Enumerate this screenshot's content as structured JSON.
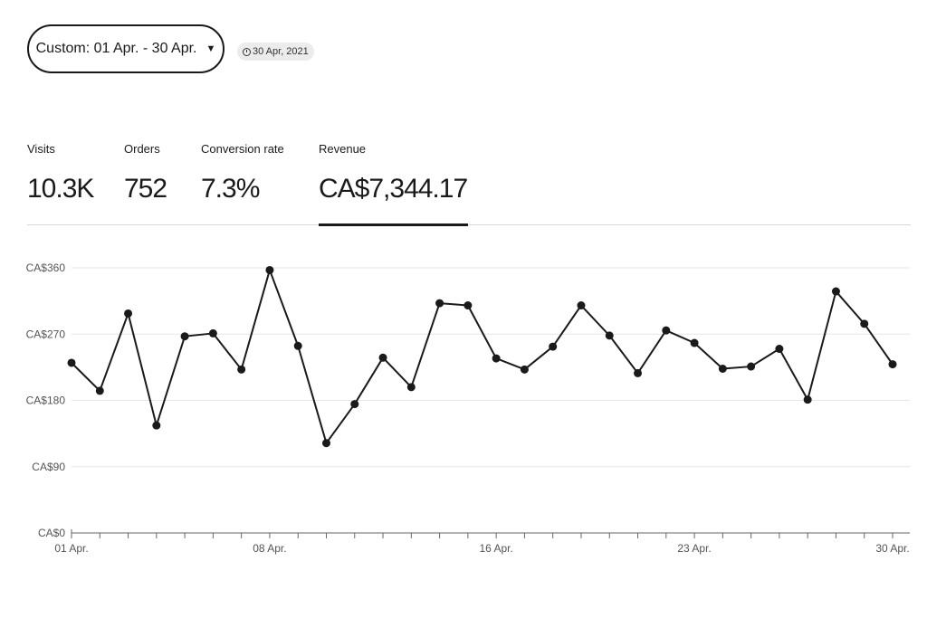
{
  "date_range": {
    "label": "Custom: 01 Apr. - 30 Apr.",
    "caret": "▼"
  },
  "updated_badge": {
    "icon": "clock-icon",
    "text": "30 Apr, 2021"
  },
  "metrics": [
    {
      "label": "Visits",
      "value": "10.3K"
    },
    {
      "label": "Orders",
      "value": "752"
    },
    {
      "label": "Conversion rate",
      "value": "7.3%"
    },
    {
      "label": "Revenue",
      "value": "CA$7,344.17",
      "active": true
    }
  ],
  "chart_data": {
    "type": "line",
    "series": [
      {
        "values": [
          231,
          193,
          298,
          146,
          267,
          271,
          222,
          357,
          254,
          122,
          175,
          238,
          198,
          312,
          309,
          237,
          222,
          253,
          309,
          268,
          217,
          275,
          258,
          223,
          226,
          250,
          181,
          328,
          284,
          229
        ]
      }
    ],
    "x": [
      1,
      2,
      3,
      4,
      5,
      6,
      7,
      8,
      9,
      10,
      11,
      12,
      13,
      14,
      15,
      16,
      17,
      18,
      19,
      20,
      21,
      22,
      23,
      24,
      25,
      26,
      27,
      28,
      29,
      30
    ],
    "x_tick_labels": [
      {
        "day": 1,
        "label": "01 Apr."
      },
      {
        "day": 8,
        "label": "08 Apr."
      },
      {
        "day": 16,
        "label": "16 Apr."
      },
      {
        "day": 23,
        "label": "23 Apr."
      },
      {
        "day": 30,
        "label": "30 Apr."
      }
    ],
    "y_ticks": [
      0,
      90,
      180,
      270,
      360
    ],
    "y_tick_labels": [
      "CA$0",
      "CA$90",
      "CA$180",
      "CA$270",
      "CA$360"
    ],
    "ylim": [
      0,
      360
    ],
    "xlim": [
      1,
      30
    ],
    "grid": true,
    "line_color": "#1a1a1a"
  }
}
